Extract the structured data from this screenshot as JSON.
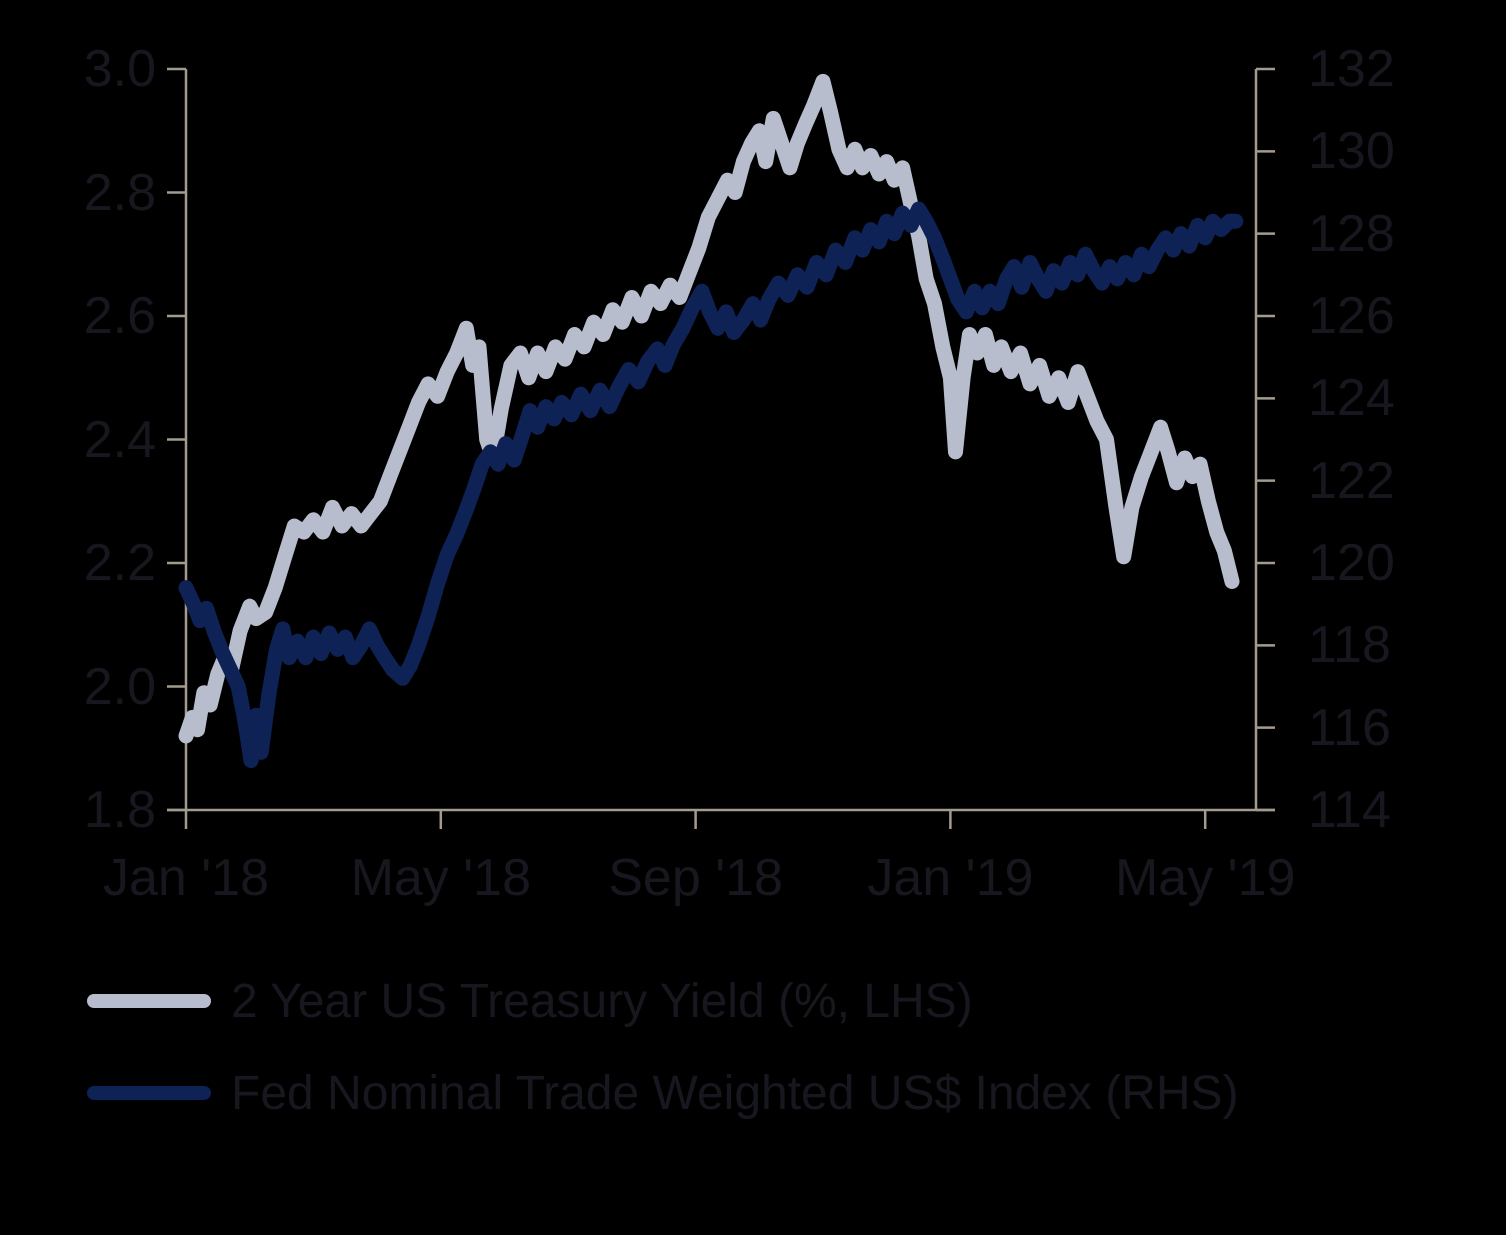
{
  "figure": {
    "background_color": "#000000",
    "text_color": "#17171f",
    "axis_color": "#a49b8f"
  },
  "chart_data": {
    "type": "line",
    "title": "",
    "grid": false,
    "legend_position": "bottom-left",
    "x_axis": {
      "labels": [
        "Jan '18",
        "May '18",
        "Sep '18",
        "Jan '19",
        "May '19"
      ],
      "tick_months": [
        0,
        4,
        8,
        12,
        16
      ]
    },
    "y_axis_left": {
      "ticks": [
        "3.0",
        "2.8",
        "2.6",
        "2.4",
        "2.2",
        "2.0",
        "1.8"
      ],
      "range": [
        1.8,
        3.0
      ]
    },
    "y_axis_right": {
      "ticks": [
        "132",
        "130",
        "128",
        "126",
        "124",
        "122",
        "120",
        "118",
        "116",
        "114"
      ],
      "range": [
        114,
        132
      ]
    },
    "series": [
      {
        "id": "treasury-yield",
        "name": "2 Year US Treasury Yield (%, LHS)",
        "axis": "left",
        "color": "#b7bdcc",
        "points": [
          [
            0.0,
            1.92
          ],
          [
            0.1,
            1.95
          ],
          [
            0.18,
            1.93
          ],
          [
            0.28,
            1.99
          ],
          [
            0.38,
            1.97
          ],
          [
            0.5,
            2.02
          ],
          [
            0.62,
            2.05
          ],
          [
            0.72,
            2.03
          ],
          [
            0.85,
            2.09
          ],
          [
            1.0,
            2.13
          ],
          [
            1.1,
            2.11
          ],
          [
            1.25,
            2.12
          ],
          [
            1.4,
            2.16
          ],
          [
            1.55,
            2.21
          ],
          [
            1.7,
            2.26
          ],
          [
            1.85,
            2.25
          ],
          [
            2.0,
            2.27
          ],
          [
            2.15,
            2.25
          ],
          [
            2.3,
            2.29
          ],
          [
            2.45,
            2.26
          ],
          [
            2.6,
            2.28
          ],
          [
            2.75,
            2.26
          ],
          [
            2.9,
            2.28
          ],
          [
            3.05,
            2.3
          ],
          [
            3.2,
            2.34
          ],
          [
            3.35,
            2.38
          ],
          [
            3.5,
            2.42
          ],
          [
            3.65,
            2.46
          ],
          [
            3.8,
            2.49
          ],
          [
            3.95,
            2.47
          ],
          [
            4.1,
            2.51
          ],
          [
            4.25,
            2.54
          ],
          [
            4.4,
            2.58
          ],
          [
            4.5,
            2.52
          ],
          [
            4.6,
            2.55
          ],
          [
            4.72,
            2.4
          ],
          [
            4.82,
            2.37
          ],
          [
            4.95,
            2.45
          ],
          [
            5.1,
            2.52
          ],
          [
            5.25,
            2.54
          ],
          [
            5.38,
            2.5
          ],
          [
            5.52,
            2.54
          ],
          [
            5.65,
            2.51
          ],
          [
            5.8,
            2.55
          ],
          [
            5.95,
            2.53
          ],
          [
            6.1,
            2.57
          ],
          [
            6.25,
            2.55
          ],
          [
            6.4,
            2.59
          ],
          [
            6.55,
            2.57
          ],
          [
            6.7,
            2.61
          ],
          [
            6.85,
            2.59
          ],
          [
            7.0,
            2.63
          ],
          [
            7.15,
            2.6
          ],
          [
            7.3,
            2.64
          ],
          [
            7.45,
            2.62
          ],
          [
            7.6,
            2.65
          ],
          [
            7.75,
            2.63
          ],
          [
            7.9,
            2.67
          ],
          [
            8.05,
            2.71
          ],
          [
            8.2,
            2.76
          ],
          [
            8.35,
            2.79
          ],
          [
            8.5,
            2.82
          ],
          [
            8.62,
            2.8
          ],
          [
            8.75,
            2.85
          ],
          [
            8.88,
            2.88
          ],
          [
            9.0,
            2.9
          ],
          [
            9.1,
            2.85
          ],
          [
            9.22,
            2.92
          ],
          [
            9.35,
            2.88
          ],
          [
            9.48,
            2.84
          ],
          [
            9.6,
            2.88
          ],
          [
            9.72,
            2.91
          ],
          [
            9.85,
            2.94
          ],
          [
            10.0,
            2.98
          ],
          [
            10.12,
            2.93
          ],
          [
            10.25,
            2.87
          ],
          [
            10.38,
            2.84
          ],
          [
            10.5,
            2.87
          ],
          [
            10.62,
            2.84
          ],
          [
            10.75,
            2.86
          ],
          [
            10.88,
            2.83
          ],
          [
            11.0,
            2.85
          ],
          [
            11.12,
            2.82
          ],
          [
            11.25,
            2.84
          ],
          [
            11.38,
            2.78
          ],
          [
            11.5,
            2.73
          ],
          [
            11.62,
            2.66
          ],
          [
            11.75,
            2.62
          ],
          [
            11.88,
            2.55
          ],
          [
            12.0,
            2.5
          ],
          [
            12.08,
            2.38
          ],
          [
            12.2,
            2.5
          ],
          [
            12.3,
            2.57
          ],
          [
            12.42,
            2.54
          ],
          [
            12.55,
            2.57
          ],
          [
            12.68,
            2.52
          ],
          [
            12.8,
            2.55
          ],
          [
            12.95,
            2.51
          ],
          [
            13.1,
            2.54
          ],
          [
            13.25,
            2.49
          ],
          [
            13.4,
            2.52
          ],
          [
            13.55,
            2.47
          ],
          [
            13.7,
            2.5
          ],
          [
            13.85,
            2.46
          ],
          [
            14.0,
            2.51
          ],
          [
            14.15,
            2.47
          ],
          [
            14.3,
            2.43
          ],
          [
            14.45,
            2.4
          ],
          [
            14.6,
            2.29
          ],
          [
            14.72,
            2.21
          ],
          [
            14.85,
            2.29
          ],
          [
            15.0,
            2.34
          ],
          [
            15.15,
            2.38
          ],
          [
            15.3,
            2.42
          ],
          [
            15.42,
            2.38
          ],
          [
            15.55,
            2.33
          ],
          [
            15.68,
            2.37
          ],
          [
            15.8,
            2.34
          ],
          [
            15.92,
            2.36
          ],
          [
            16.05,
            2.3
          ],
          [
            16.18,
            2.25
          ],
          [
            16.3,
            2.22
          ],
          [
            16.42,
            2.17
          ]
        ]
      },
      {
        "id": "usd-index",
        "name": "Fed Nominal Trade Weighted US$ Index (RHS)",
        "axis": "right",
        "color": "#0e2256",
        "points": [
          [
            0.0,
            119.4
          ],
          [
            0.12,
            119.0
          ],
          [
            0.22,
            118.6
          ],
          [
            0.32,
            118.9
          ],
          [
            0.45,
            118.3
          ],
          [
            0.58,
            117.8
          ],
          [
            0.7,
            117.4
          ],
          [
            0.82,
            117.0
          ],
          [
            0.92,
            116.2
          ],
          [
            1.02,
            115.2
          ],
          [
            1.1,
            116.3
          ],
          [
            1.18,
            115.4
          ],
          [
            1.3,
            116.8
          ],
          [
            1.42,
            117.9
          ],
          [
            1.52,
            118.4
          ],
          [
            1.62,
            117.7
          ],
          [
            1.75,
            118.1
          ],
          [
            1.88,
            117.7
          ],
          [
            2.0,
            118.2
          ],
          [
            2.12,
            117.8
          ],
          [
            2.25,
            118.3
          ],
          [
            2.38,
            117.9
          ],
          [
            2.5,
            118.2
          ],
          [
            2.62,
            117.7
          ],
          [
            2.75,
            118.0
          ],
          [
            2.88,
            118.4
          ],
          [
            3.0,
            118.0
          ],
          [
            3.12,
            117.7
          ],
          [
            3.25,
            117.4
          ],
          [
            3.4,
            117.2
          ],
          [
            3.52,
            117.5
          ],
          [
            3.65,
            118.0
          ],
          [
            3.8,
            118.7
          ],
          [
            3.95,
            119.5
          ],
          [
            4.1,
            120.2
          ],
          [
            4.25,
            120.7
          ],
          [
            4.4,
            121.3
          ],
          [
            4.52,
            121.8
          ],
          [
            4.65,
            122.4
          ],
          [
            4.78,
            122.7
          ],
          [
            4.9,
            122.4
          ],
          [
            5.02,
            122.9
          ],
          [
            5.15,
            122.5
          ],
          [
            5.28,
            123.1
          ],
          [
            5.4,
            123.7
          ],
          [
            5.52,
            123.3
          ],
          [
            5.65,
            123.8
          ],
          [
            5.78,
            123.5
          ],
          [
            5.9,
            123.9
          ],
          [
            6.05,
            123.6
          ],
          [
            6.2,
            124.1
          ],
          [
            6.35,
            123.7
          ],
          [
            6.5,
            124.2
          ],
          [
            6.65,
            123.8
          ],
          [
            6.8,
            124.3
          ],
          [
            6.95,
            124.7
          ],
          [
            7.1,
            124.4
          ],
          [
            7.25,
            124.9
          ],
          [
            7.4,
            125.2
          ],
          [
            7.52,
            124.8
          ],
          [
            7.65,
            125.3
          ],
          [
            7.8,
            125.7
          ],
          [
            7.95,
            126.2
          ],
          [
            8.1,
            126.6
          ],
          [
            8.22,
            126.1
          ],
          [
            8.35,
            125.7
          ],
          [
            8.48,
            126.1
          ],
          [
            8.6,
            125.6
          ],
          [
            8.75,
            125.9
          ],
          [
            8.9,
            126.3
          ],
          [
            9.02,
            125.9
          ],
          [
            9.15,
            126.4
          ],
          [
            9.3,
            126.8
          ],
          [
            9.45,
            126.5
          ],
          [
            9.6,
            127.0
          ],
          [
            9.75,
            126.7
          ],
          [
            9.9,
            127.3
          ],
          [
            10.05,
            127.0
          ],
          [
            10.2,
            127.6
          ],
          [
            10.35,
            127.3
          ],
          [
            10.5,
            127.9
          ],
          [
            10.62,
            127.6
          ],
          [
            10.75,
            128.1
          ],
          [
            10.88,
            127.8
          ],
          [
            11.0,
            128.3
          ],
          [
            11.12,
            128.0
          ],
          [
            11.25,
            128.5
          ],
          [
            11.38,
            128.2
          ],
          [
            11.5,
            128.6
          ],
          [
            11.62,
            128.3
          ],
          [
            11.75,
            127.9
          ],
          [
            11.88,
            127.4
          ],
          [
            12.0,
            126.9
          ],
          [
            12.12,
            126.4
          ],
          [
            12.25,
            126.1
          ],
          [
            12.38,
            126.6
          ],
          [
            12.5,
            126.2
          ],
          [
            12.62,
            126.6
          ],
          [
            12.75,
            126.3
          ],
          [
            12.88,
            126.9
          ],
          [
            13.0,
            127.2
          ],
          [
            13.12,
            126.7
          ],
          [
            13.25,
            127.3
          ],
          [
            13.38,
            126.9
          ],
          [
            13.5,
            126.6
          ],
          [
            13.62,
            127.1
          ],
          [
            13.75,
            126.8
          ],
          [
            13.88,
            127.3
          ],
          [
            14.0,
            127.0
          ],
          [
            14.12,
            127.5
          ],
          [
            14.25,
            127.1
          ],
          [
            14.38,
            126.8
          ],
          [
            14.5,
            127.2
          ],
          [
            14.62,
            126.9
          ],
          [
            14.75,
            127.3
          ],
          [
            14.88,
            127.0
          ],
          [
            15.0,
            127.5
          ],
          [
            15.12,
            127.2
          ],
          [
            15.25,
            127.6
          ],
          [
            15.38,
            127.9
          ],
          [
            15.5,
            127.6
          ],
          [
            15.62,
            128.0
          ],
          [
            15.75,
            127.7
          ],
          [
            15.88,
            128.2
          ],
          [
            16.0,
            127.9
          ],
          [
            16.12,
            128.3
          ],
          [
            16.25,
            128.1
          ],
          [
            16.38,
            128.3
          ],
          [
            16.48,
            128.3
          ]
        ]
      }
    ]
  },
  "legend": {
    "items": [
      {
        "label": "2 Year US Treasury Yield (%, LHS)",
        "color": "#b7bdcc"
      },
      {
        "label": "Fed Nominal Trade Weighted US$ Index (RHS)",
        "color": "#0e2256"
      }
    ]
  }
}
